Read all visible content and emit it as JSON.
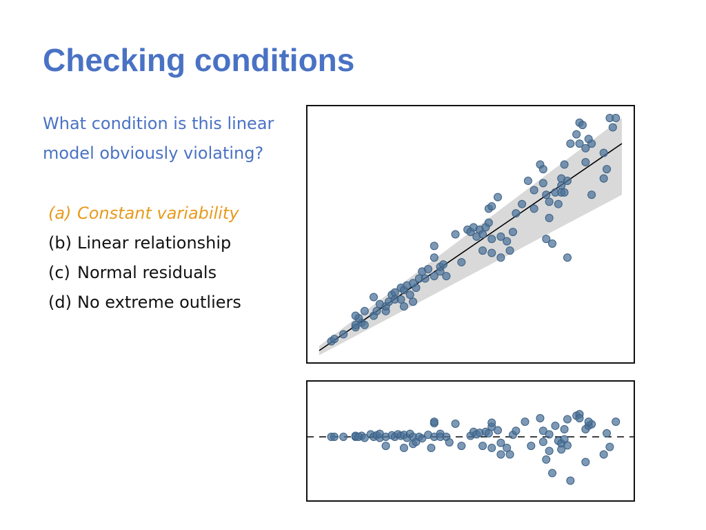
{
  "slide": {
    "title": "Checking conditions",
    "question": "What condition is this linear model obviously violating?",
    "options": [
      {
        "label": "(a)",
        "text": "Constant variability",
        "highlighted": true
      },
      {
        "label": "(b)",
        "text": "Linear relationship",
        "highlighted": false
      },
      {
        "label": "(c)",
        "text": "Normal residuals",
        "highlighted": false
      },
      {
        "label": "(d)",
        "text": "No extreme outliers",
        "highlighted": false
      }
    ]
  },
  "colors": {
    "title": "#4a72c4",
    "question": "#4a72c4",
    "highlight": "#e89a1c",
    "points": "#4b7298",
    "band": "#d9d9d9"
  },
  "chart_data": [
    {
      "type": "scatter",
      "title": "",
      "xlabel": "",
      "ylabel": "",
      "xlim": [
        0,
        1
      ],
      "ylim": [
        0,
        1
      ],
      "grid": false,
      "fit_line": {
        "x": [
          0,
          1
        ],
        "y": [
          0,
          0.89
        ]
      },
      "band": {
        "upper": [
          0.02,
          1.0
        ],
        "lower": [
          -0.02,
          0.67
        ]
      },
      "points": [
        [
          0.04,
          0.04
        ],
        [
          0.05,
          0.05
        ],
        [
          0.08,
          0.07
        ],
        [
          0.12,
          0.1
        ],
        [
          0.12,
          0.11
        ],
        [
          0.14,
          0.12
        ],
        [
          0.15,
          0.11
        ],
        [
          0.13,
          0.14
        ],
        [
          0.12,
          0.15
        ],
        [
          0.15,
          0.17
        ],
        [
          0.18,
          0.15
        ],
        [
          0.19,
          0.17
        ],
        [
          0.2,
          0.2
        ],
        [
          0.18,
          0.23
        ],
        [
          0.22,
          0.17
        ],
        [
          0.22,
          0.19
        ],
        [
          0.23,
          0.21
        ],
        [
          0.24,
          0.24
        ],
        [
          0.25,
          0.25
        ],
        [
          0.27,
          0.27
        ],
        [
          0.25,
          0.22
        ],
        [
          0.27,
          0.22
        ],
        [
          0.28,
          0.19
        ],
        [
          0.28,
          0.26
        ],
        [
          0.29,
          0.28
        ],
        [
          0.3,
          0.24
        ],
        [
          0.31,
          0.21
        ],
        [
          0.32,
          0.27
        ],
        [
          0.31,
          0.29
        ],
        [
          0.33,
          0.31
        ],
        [
          0.34,
          0.34
        ],
        [
          0.35,
          0.31
        ],
        [
          0.36,
          0.35
        ],
        [
          0.38,
          0.32
        ],
        [
          0.38,
          0.4
        ],
        [
          0.38,
          0.45
        ],
        [
          0.4,
          0.34
        ],
        [
          0.4,
          0.36
        ],
        [
          0.41,
          0.37
        ],
        [
          0.42,
          0.32
        ],
        [
          0.45,
          0.5
        ],
        [
          0.47,
          0.38
        ],
        [
          0.49,
          0.52
        ],
        [
          0.5,
          0.51
        ],
        [
          0.51,
          0.53
        ],
        [
          0.52,
          0.49
        ],
        [
          0.53,
          0.52
        ],
        [
          0.54,
          0.5
        ],
        [
          0.55,
          0.53
        ],
        [
          0.56,
          0.55
        ],
        [
          0.54,
          0.43
        ],
        [
          0.57,
          0.48
        ],
        [
          0.57,
          0.42
        ],
        [
          0.56,
          0.61
        ],
        [
          0.57,
          0.62
        ],
        [
          0.59,
          0.66
        ],
        [
          0.6,
          0.4
        ],
        [
          0.6,
          0.49
        ],
        [
          0.62,
          0.47
        ],
        [
          0.63,
          0.43
        ],
        [
          0.64,
          0.51
        ],
        [
          0.65,
          0.59
        ],
        [
          0.67,
          0.63
        ],
        [
          0.69,
          0.73
        ],
        [
          0.71,
          0.61
        ],
        [
          0.71,
          0.69
        ],
        [
          0.73,
          0.8
        ],
        [
          0.74,
          0.78
        ],
        [
          0.74,
          0.72
        ],
        [
          0.75,
          0.67
        ],
        [
          0.76,
          0.57
        ],
        [
          0.75,
          0.48
        ],
        [
          0.76,
          0.64
        ],
        [
          0.77,
          0.46
        ],
        [
          0.78,
          0.68
        ],
        [
          0.79,
          0.63
        ],
        [
          0.8,
          0.68
        ],
        [
          0.8,
          0.71
        ],
        [
          0.8,
          0.74
        ],
        [
          0.81,
          0.68
        ],
        [
          0.81,
          0.8
        ],
        [
          0.82,
          0.73
        ],
        [
          0.82,
          0.4
        ],
        [
          0.83,
          0.89
        ],
        [
          0.85,
          0.93
        ],
        [
          0.86,
          0.89
        ],
        [
          0.86,
          0.98
        ],
        [
          0.87,
          0.97
        ],
        [
          0.88,
          0.81
        ],
        [
          0.88,
          0.87
        ],
        [
          0.9,
          0.89
        ],
        [
          0.89,
          0.91
        ],
        [
          0.9,
          0.67
        ],
        [
          0.94,
          0.74
        ],
        [
          0.94,
          0.85
        ],
        [
          0.95,
          0.78
        ],
        [
          0.97,
          0.96
        ],
        [
          0.96,
          1.0
        ],
        [
          0.98,
          1.0
        ]
      ]
    },
    {
      "type": "scatter",
      "title": "",
      "xlabel": "",
      "ylabel": "",
      "xlim": [
        0,
        1
      ],
      "ylim": [
        -1,
        1
      ],
      "grid": false,
      "reference_line": {
        "y": 0,
        "style": "dashed"
      },
      "points": [
        [
          0.04,
          0.0
        ],
        [
          0.05,
          0.0
        ],
        [
          0.08,
          0.0
        ],
        [
          0.12,
          0.0
        ],
        [
          0.12,
          0.02
        ],
        [
          0.14,
          0.02
        ],
        [
          0.13,
          0.0
        ],
        [
          0.15,
          -0.02
        ],
        [
          0.17,
          0.05
        ],
        [
          0.18,
          0.0
        ],
        [
          0.19,
          0.03
        ],
        [
          0.2,
          -0.02
        ],
        [
          0.2,
          0.06
        ],
        [
          0.22,
          0.0
        ],
        [
          0.22,
          -0.18
        ],
        [
          0.24,
          0.03
        ],
        [
          0.25,
          0.0
        ],
        [
          0.26,
          0.05
        ],
        [
          0.27,
          0.02
        ],
        [
          0.28,
          0.04
        ],
        [
          0.28,
          -0.22
        ],
        [
          0.29,
          -0.02
        ],
        [
          0.3,
          0.06
        ],
        [
          0.31,
          0.0
        ],
        [
          0.31,
          -0.14
        ],
        [
          0.32,
          -0.1
        ],
        [
          0.33,
          0.0
        ],
        [
          0.34,
          -0.03
        ],
        [
          0.36,
          0.04
        ],
        [
          0.37,
          -0.22
        ],
        [
          0.38,
          0.0
        ],
        [
          0.38,
          0.27
        ],
        [
          0.38,
          0.3
        ],
        [
          0.4,
          0.06
        ],
        [
          0.4,
          0.0
        ],
        [
          0.42,
          0.0
        ],
        [
          0.43,
          -0.11
        ],
        [
          0.45,
          0.26
        ],
        [
          0.47,
          -0.18
        ],
        [
          0.5,
          0.02
        ],
        [
          0.51,
          0.1
        ],
        [
          0.52,
          0.05
        ],
        [
          0.53,
          0.08
        ],
        [
          0.54,
          -0.18
        ],
        [
          0.55,
          0.1
        ],
        [
          0.56,
          0.07
        ],
        [
          0.57,
          -0.22
        ],
        [
          0.57,
          0.2
        ],
        [
          0.57,
          0.28
        ],
        [
          0.59,
          0.13
        ],
        [
          0.6,
          -0.35
        ],
        [
          0.6,
          -0.12
        ],
        [
          0.62,
          -0.22
        ],
        [
          0.63,
          -0.35
        ],
        [
          0.64,
          0.04
        ],
        [
          0.65,
          0.12
        ],
        [
          0.68,
          0.3
        ],
        [
          0.7,
          -0.18
        ],
        [
          0.73,
          0.37
        ],
        [
          0.74,
          0.12
        ],
        [
          0.74,
          -0.1
        ],
        [
          0.75,
          -0.45
        ],
        [
          0.76,
          -0.28
        ],
        [
          0.76,
          0.05
        ],
        [
          0.77,
          -0.72
        ],
        [
          0.78,
          0.22
        ],
        [
          0.79,
          -0.08
        ],
        [
          0.8,
          -0.13
        ],
        [
          0.8,
          -0.25
        ],
        [
          0.81,
          -0.05
        ],
        [
          0.81,
          0.15
        ],
        [
          0.82,
          0.35
        ],
        [
          0.82,
          -0.17
        ],
        [
          0.83,
          -0.87
        ],
        [
          0.85,
          0.42
        ],
        [
          0.86,
          0.45
        ],
        [
          0.86,
          0.37
        ],
        [
          0.88,
          0.15
        ],
        [
          0.88,
          -0.5
        ],
        [
          0.89,
          0.22
        ],
        [
          0.9,
          0.25
        ],
        [
          0.89,
          0.3
        ],
        [
          0.94,
          -0.35
        ],
        [
          0.95,
          0.07
        ],
        [
          0.96,
          -0.2
        ],
        [
          0.98,
          0.3
        ]
      ]
    }
  ]
}
